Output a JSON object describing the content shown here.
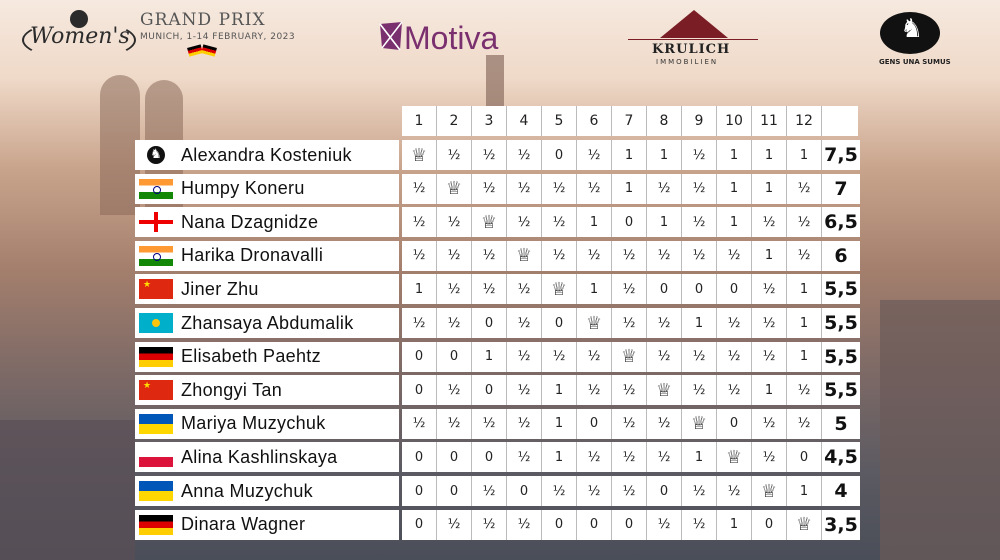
{
  "header": {
    "women_logo": "Women's",
    "gp_title": "GRAND PRIX",
    "gp_subtitle": "MUNICH, 1-14 FEBRUARY, 2023",
    "motiva": "Motiva",
    "krulich": "KRULICH",
    "krulich_sub": "IMMOBILIEN",
    "fide_motto": "GENS UNA SUMUS"
  },
  "columns": [
    "1",
    "2",
    "3",
    "4",
    "5",
    "6",
    "7",
    "8",
    "9",
    "10",
    "11",
    "12"
  ],
  "self_symbol": "♕",
  "players": [
    {
      "name": "Alexandra Kosteniuk",
      "flag": "fide",
      "results": [
        "♕",
        "½",
        "½",
        "½",
        "0",
        "½",
        "1",
        "1",
        "½",
        "1",
        "1",
        "1"
      ],
      "total": "7,5"
    },
    {
      "name": "Humpy Koneru",
      "flag": "india",
      "results": [
        "½",
        "♕",
        "½",
        "½",
        "½",
        "½",
        "1",
        "½",
        "½",
        "1",
        "1",
        "½"
      ],
      "total": "7"
    },
    {
      "name": "Nana Dzagnidze",
      "flag": "georgia",
      "results": [
        "½",
        "½",
        "♕",
        "½",
        "½",
        "1",
        "0",
        "1",
        "½",
        "1",
        "½",
        "½"
      ],
      "total": "6,5"
    },
    {
      "name": "Harika Dronavalli",
      "flag": "india",
      "results": [
        "½",
        "½",
        "½",
        "♕",
        "½",
        "½",
        "½",
        "½",
        "½",
        "½",
        "1",
        "½"
      ],
      "total": "6"
    },
    {
      "name": "Jiner Zhu",
      "flag": "china",
      "results": [
        "1",
        "½",
        "½",
        "½",
        "♕",
        "1",
        "½",
        "0",
        "0",
        "0",
        "½",
        "1"
      ],
      "total": "5,5"
    },
    {
      "name": "Zhansaya Abdumalik",
      "flag": "kazakhstan",
      "results": [
        "½",
        "½",
        "0",
        "½",
        "0",
        "♕",
        "½",
        "½",
        "1",
        "½",
        "½",
        "1"
      ],
      "total": "5,5"
    },
    {
      "name": "Elisabeth Paehtz",
      "flag": "germany",
      "results": [
        "0",
        "0",
        "1",
        "½",
        "½",
        "½",
        "♕",
        "½",
        "½",
        "½",
        "½",
        "1"
      ],
      "total": "5,5"
    },
    {
      "name": "Zhongyi Tan",
      "flag": "china",
      "results": [
        "0",
        "½",
        "0",
        "½",
        "1",
        "½",
        "½",
        "♕",
        "½",
        "½",
        "1",
        "½"
      ],
      "total": "5,5"
    },
    {
      "name": "Mariya Muzychuk",
      "flag": "ukraine",
      "results": [
        "½",
        "½",
        "½",
        "½",
        "1",
        "0",
        "½",
        "½",
        "♕",
        "0",
        "½",
        "½"
      ],
      "total": "5"
    },
    {
      "name": "Alina Kashlinskaya",
      "flag": "poland",
      "results": [
        "0",
        "0",
        "0",
        "½",
        "1",
        "½",
        "½",
        "½",
        "1",
        "♕",
        "½",
        "0"
      ],
      "total": "4,5"
    },
    {
      "name": "Anna Muzychuk",
      "flag": "ukraine",
      "results": [
        "0",
        "0",
        "½",
        "0",
        "½",
        "½",
        "½",
        "0",
        "½",
        "½",
        "♕",
        "1"
      ],
      "total": "4"
    },
    {
      "name": "Dinara Wagner",
      "flag": "germany",
      "results": [
        "0",
        "½",
        "½",
        "½",
        "0",
        "0",
        "0",
        "½",
        "½",
        "1",
        "0",
        "♕"
      ],
      "total": "3,5"
    }
  ],
  "colors": {
    "motiva": "#7a2f6e",
    "krulich_roof": "#7a1d24"
  }
}
